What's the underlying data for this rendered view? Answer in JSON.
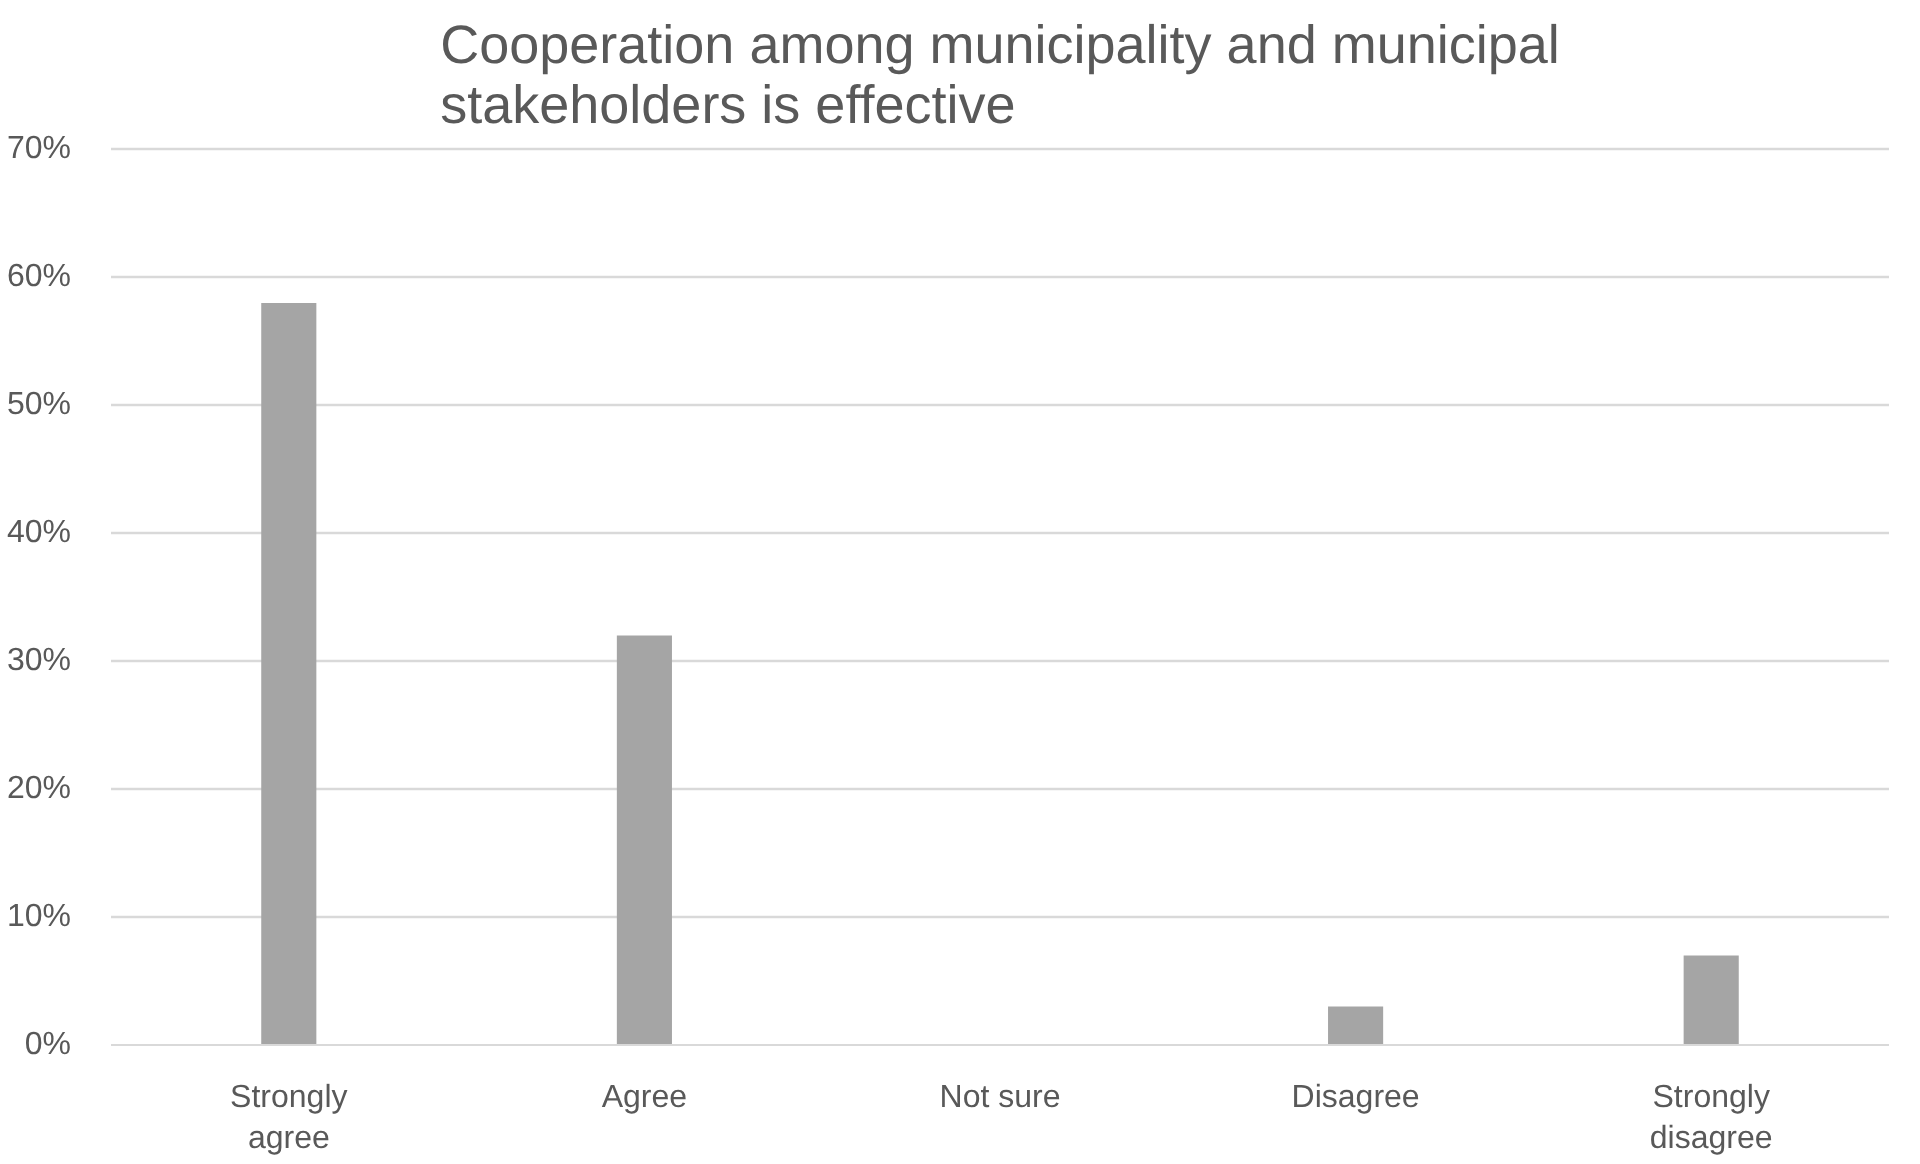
{
  "chart_data": {
    "type": "bar",
    "title": "Cooperation among municipality and municipal\nstakeholders is effective",
    "categories": [
      "Strongly\nagree",
      "Agree",
      "Not sure",
      "Disagree",
      "Strongly\ndisagree"
    ],
    "values": [
      0.58,
      0.32,
      0,
      0.03,
      0.07
    ],
    "color": "#a5a5a5",
    "ylim": [
      0,
      0.7
    ],
    "yticks": [
      {
        "value": 0,
        "label": "0%"
      },
      {
        "value": 0.1,
        "label": "10%"
      },
      {
        "value": 0.2,
        "label": "20%"
      },
      {
        "value": 0.3,
        "label": "30%"
      },
      {
        "value": 0.4,
        "label": "40%"
      },
      {
        "value": 0.5,
        "label": "50%"
      },
      {
        "value": 0.6,
        "label": "60%"
      },
      {
        "value": 0.7,
        "label": "70%"
      }
    ],
    "grid": "y"
  }
}
